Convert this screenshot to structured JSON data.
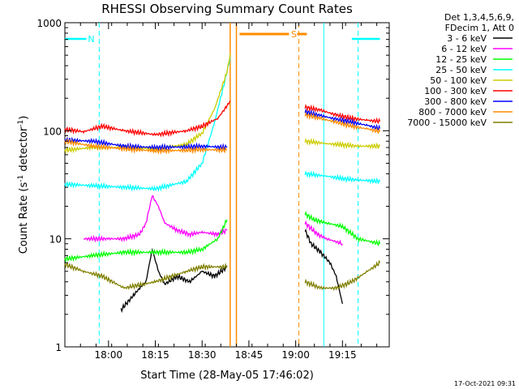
{
  "chart_data": {
    "type": "line",
    "title": "RHESSI Observing Summary Count Rates",
    "xlabel": "Start Time (28-May-05 17:46:02)",
    "ylabel_main": "Count Rate (s",
    "ylabel_sup1": "-1",
    "ylabel_mid": " detector",
    "ylabel_sup2": "-1",
    "ylabel_end": ")",
    "y_scale": "log",
    "ylim": [
      1,
      1000
    ],
    "xlim": [
      "17:46",
      "19:30"
    ],
    "x_ticks": [
      "18:00",
      "18:15",
      "18:30",
      "18:45",
      "19:00",
      "19:15"
    ],
    "y_ticks": [
      "1",
      "10",
      "100",
      "1000"
    ],
    "legend_header": [
      "Det 1,3,4,5,6,9,",
      "FDecim 1, Att 0"
    ],
    "legend_position": "right",
    "footer_date": "17-Oct-2021 09:31",
    "annotations": [
      {
        "text": "N",
        "color": "#00ffff",
        "meaning": "night",
        "from": "17:46",
        "to": "17:56"
      },
      {
        "text": "",
        "color": "#00ffff",
        "meaning": "night",
        "from": "19:18",
        "to": "19:27"
      },
      {
        "text": "S",
        "color": "#ff8c00",
        "meaning": "SAA",
        "from": "18:42",
        "to": "19:01"
      }
    ],
    "vlines_cyan_solid": [
      "19:09"
    ],
    "vlines_cyan_dashed": [
      "17:57",
      "19:20"
    ],
    "vlines_orange_solid": [
      "18:39",
      "18:41"
    ],
    "vlines_orange_dashed": [
      "19:01"
    ],
    "series": [
      {
        "name": "3 - 6 keV",
        "color": "#000000",
        "x1": [
          "18:04",
          "18:08",
          "18:10",
          "18:12",
          "18:14",
          "18:16",
          "18:18",
          "18:22",
          "18:26",
          "18:30",
          "18:34",
          "18:38"
        ],
        "y1": [
          2.2,
          3.0,
          3.5,
          4.0,
          8,
          5,
          3.8,
          4.5,
          4.0,
          5.0,
          4.5,
          5.5
        ],
        "x2": [
          "19:03",
          "19:05",
          "19:08",
          "19:11",
          "19:13",
          "19:15"
        ],
        "y2": [
          12,
          9,
          7.5,
          6,
          4.5,
          2.5
        ]
      },
      {
        "name": "6 - 12 keV",
        "color": "#ff00ff",
        "x1": [
          "17:52",
          "18:00",
          "18:05",
          "18:10",
          "18:12",
          "18:14",
          "18:16",
          "18:18",
          "18:22",
          "18:26",
          "18:30",
          "18:35",
          "18:38"
        ],
        "y1": [
          10,
          10,
          10,
          11,
          14,
          25,
          20,
          14,
          12,
          11,
          11.5,
          11,
          12
        ],
        "x2": [
          "19:03",
          "19:07",
          "19:10",
          "19:15"
        ],
        "y2": [
          14,
          11,
          10,
          9
        ]
      },
      {
        "name": "12 - 25 keV",
        "color": "#00ff00",
        "x1": [
          "17:46",
          "17:55",
          "18:05",
          "18:15",
          "18:25",
          "18:30",
          "18:35",
          "18:38"
        ],
        "y1": [
          6.5,
          7,
          7.5,
          7.5,
          7.5,
          8,
          10,
          15
        ],
        "x2": [
          "19:03",
          "19:06",
          "19:10",
          "19:15",
          "19:20",
          "19:27"
        ],
        "y2": [
          17,
          15,
          14,
          13,
          10,
          9
        ]
      },
      {
        "name": "25 - 50 keV",
        "color": "#00ffff",
        "x1": [
          "17:46",
          "17:55",
          "18:05",
          "18:15",
          "18:25",
          "18:30",
          "18:34",
          "18:38",
          "18:39"
        ],
        "y1": [
          32,
          31,
          30,
          29,
          34,
          50,
          120,
          350,
          480
        ],
        "x2": [
          "19:03",
          "19:10",
          "19:15",
          "19:20",
          "19:27"
        ],
        "y2": [
          40,
          38,
          36,
          35,
          34
        ]
      },
      {
        "name": "50 - 100 keV",
        "color": "#cccc00",
        "x1": [
          "17:46",
          "17:55",
          "18:05",
          "18:15",
          "18:25",
          "18:30",
          "18:34",
          "18:38",
          "18:39"
        ],
        "y1": [
          66,
          70,
          70,
          68,
          75,
          95,
          160,
          350,
          520
        ],
        "x2": [
          "19:03",
          "19:10",
          "19:15",
          "19:20",
          "19:27"
        ],
        "y2": [
          80,
          76,
          74,
          72,
          72
        ]
      },
      {
        "name": "100 - 300 keV",
        "color": "#ff0000",
        "x1": [
          "17:46",
          "17:52",
          "17:58",
          "18:05",
          "18:15",
          "18:25",
          "18:30",
          "18:35",
          "18:38",
          "18:39"
        ],
        "y1": [
          103,
          98,
          110,
          100,
          92,
          100,
          110,
          130,
          170,
          190
        ],
        "x2": [
          "19:03",
          "19:08",
          "19:13",
          "19:18",
          "19:23",
          "19:27"
        ],
        "y2": [
          165,
          155,
          140,
          130,
          125,
          122
        ]
      },
      {
        "name": "300 - 800 keV",
        "color": "#0000ff",
        "x1": [
          "17:46",
          "17:55",
          "18:05",
          "18:15",
          "18:25",
          "18:30",
          "18:38"
        ],
        "y1": [
          82,
          80,
          72,
          70,
          71,
          72,
          70
        ],
        "x2": [
          "19:03",
          "19:08",
          "19:13",
          "19:18",
          "19:23",
          "19:27"
        ],
        "y2": [
          150,
          138,
          128,
          120,
          112,
          105
        ]
      },
      {
        "name": "800 - 7000 keV",
        "color": "#ff8c00",
        "x1": [
          "17:46",
          "17:55",
          "18:05",
          "18:15",
          "18:25",
          "18:30",
          "18:38"
        ],
        "y1": [
          80,
          72,
          68,
          65,
          66,
          67,
          66
        ],
        "x2": [
          "19:03",
          "19:08",
          "19:13",
          "19:18",
          "19:23",
          "19:27"
        ],
        "y2": [
          140,
          130,
          120,
          110,
          104,
          98
        ]
      },
      {
        "name": "7000 - 15000 keV",
        "color": "#808000",
        "x1": [
          "17:46",
          "17:52",
          "17:58",
          "18:05",
          "18:15",
          "18:25",
          "18:30",
          "18:38"
        ],
        "y1": [
          5.8,
          5.0,
          4.5,
          3.5,
          4.0,
          5.0,
          5.5,
          5.5
        ],
        "x2": [
          "19:03",
          "19:08",
          "19:13",
          "19:18",
          "19:23",
          "19:27"
        ],
        "y2": [
          4.0,
          3.5,
          3.5,
          4.0,
          5.0,
          6.0
        ]
      }
    ]
  }
}
